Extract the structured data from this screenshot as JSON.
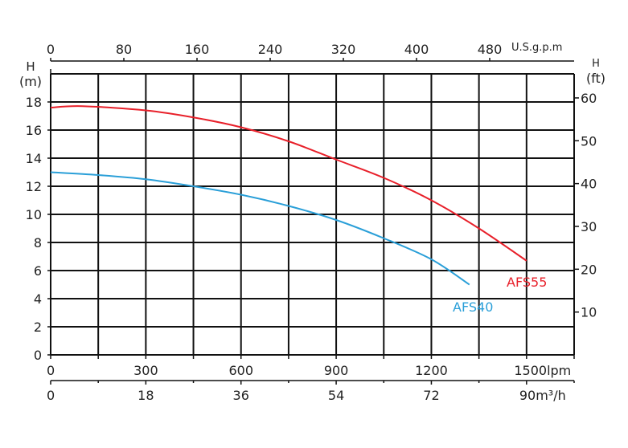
{
  "chart_data": {
    "type": "line",
    "x_unit": "lpm",
    "xlim": [
      0,
      1650
    ],
    "ylim": [
      0,
      20
    ],
    "grid": true,
    "y_left": {
      "label_top": "H",
      "label_unit": "(m)",
      "ticks": [
        0,
        2,
        4,
        6,
        8,
        10,
        12,
        14,
        16,
        18
      ]
    },
    "y_right": {
      "label_top": "H",
      "label_unit": "(ft)",
      "ticks": [
        10,
        20,
        30,
        40,
        50,
        60
      ]
    },
    "x_bottom_lpm": {
      "ticks": [
        "0",
        "300",
        "600",
        "900",
        "1200",
        "1500lpm"
      ],
      "values": [
        0,
        300,
        600,
        900,
        1200,
        1500
      ]
    },
    "x_bottom_m3h": {
      "ticks": [
        "0",
        "18",
        "36",
        "54",
        "72",
        "90m³/h"
      ],
      "values": [
        0,
        18,
        36,
        54,
        72,
        90
      ]
    },
    "x_top_gpm": {
      "ticks": [
        "0",
        "80",
        "160",
        "240",
        "320",
        "400",
        "480"
      ],
      "values": [
        0,
        80,
        160,
        240,
        320,
        400,
        480
      ],
      "unit": "U.S.g.p.m"
    },
    "series": [
      {
        "name": "AFS55",
        "color": "#e8202a",
        "x": [
          0,
          100,
          300,
          450,
          600,
          750,
          900,
          1050,
          1200,
          1350,
          1500
        ],
        "y": [
          17.6,
          17.7,
          17.4,
          16.9,
          16.2,
          15.2,
          13.9,
          12.6,
          11.0,
          9.0,
          6.7
        ]
      },
      {
        "name": "AFS40",
        "color": "#2a9fd8",
        "x": [
          0,
          150,
          300,
          450,
          600,
          750,
          900,
          1050,
          1200,
          1320
        ],
        "y": [
          13.0,
          12.8,
          12.5,
          12.0,
          11.4,
          10.6,
          9.6,
          8.3,
          6.8,
          5.0
        ]
      }
    ]
  }
}
